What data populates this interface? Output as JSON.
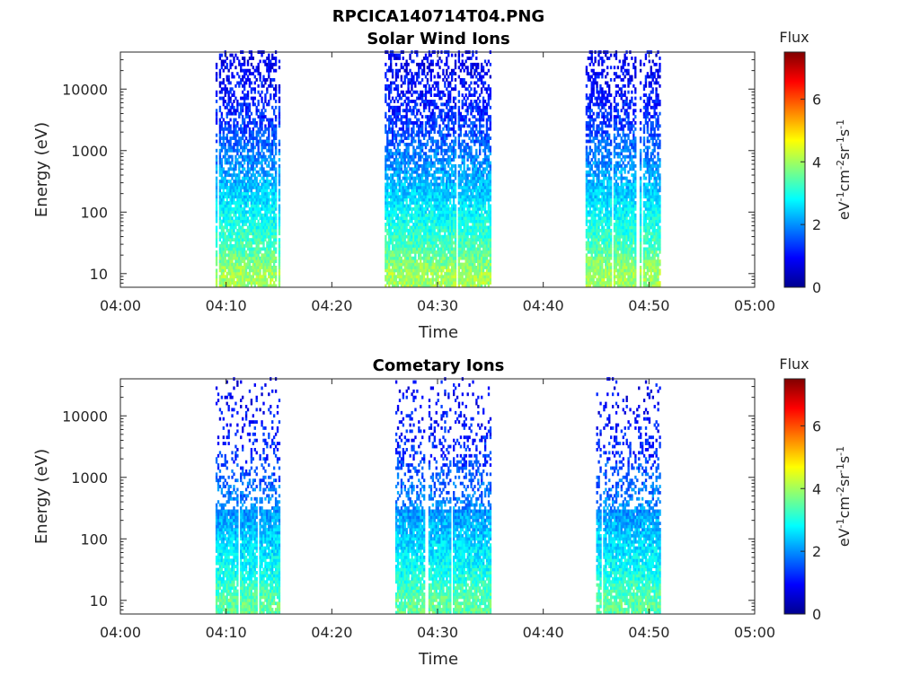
{
  "figure_title": "RPCICA140714T04.PNG",
  "chart_data": [
    {
      "type": "heatmap",
      "title": "Solar Wind Ions",
      "xlabel": "Time",
      "ylabel": "Energy (eV)",
      "x_ticks": [
        "04:00",
        "04:10",
        "04:20",
        "04:30",
        "04:40",
        "04:50",
        "05:00"
      ],
      "xlim": [
        "04:00",
        "05:00"
      ],
      "y_scale": "log",
      "y_ticks": [
        "10",
        "100",
        "1000",
        "10000"
      ],
      "ylim": [
        6,
        40000
      ],
      "colorbar": {
        "title": "Flux",
        "label": "eV-1cm-2sr-1s-1",
        "ticks": [
          "0",
          "2",
          "4",
          "6"
        ],
        "range": [
          0,
          7.5
        ],
        "colormap": "jet"
      },
      "bursts": [
        {
          "start": "04:09",
          "end": "04:15"
        },
        {
          "start": "04:25",
          "end": "04:35"
        },
        {
          "start": "04:44",
          "end": "04:51"
        }
      ],
      "flux_by_energy": {
        "energy_eV": [
          10,
          30,
          100,
          300,
          1000,
          3000,
          10000,
          30000
        ],
        "typical_flux": [
          4.0,
          3.3,
          2.8,
          2.3,
          1.8,
          1.3,
          1.0,
          0.8
        ]
      }
    },
    {
      "type": "heatmap",
      "title": "Cometary Ions",
      "xlabel": "Time",
      "ylabel": "Energy (eV)",
      "x_ticks": [
        "04:00",
        "04:10",
        "04:20",
        "04:30",
        "04:40",
        "04:50",
        "05:00"
      ],
      "xlim": [
        "04:00",
        "05:00"
      ],
      "y_scale": "log",
      "y_ticks": [
        "10",
        "100",
        "1000",
        "10000"
      ],
      "ylim": [
        6,
        40000
      ],
      "colorbar": {
        "title": "Flux",
        "label": "eV-1cm-2sr-1s-1",
        "ticks": [
          "0",
          "2",
          "4",
          "6"
        ],
        "range": [
          0,
          7.5
        ],
        "colormap": "jet"
      },
      "bursts": [
        {
          "start": "04:09",
          "end": "04:15"
        },
        {
          "start": "04:26",
          "end": "04:35"
        },
        {
          "start": "04:45",
          "end": "04:51"
        }
      ],
      "flux_by_energy": {
        "energy_eV": [
          10,
          30,
          100,
          300,
          1000,
          3000,
          10000,
          30000
        ],
        "typical_flux": [
          3.5,
          2.9,
          2.5,
          2.0,
          1.6,
          1.2,
          1.0,
          0.9
        ]
      }
    }
  ]
}
